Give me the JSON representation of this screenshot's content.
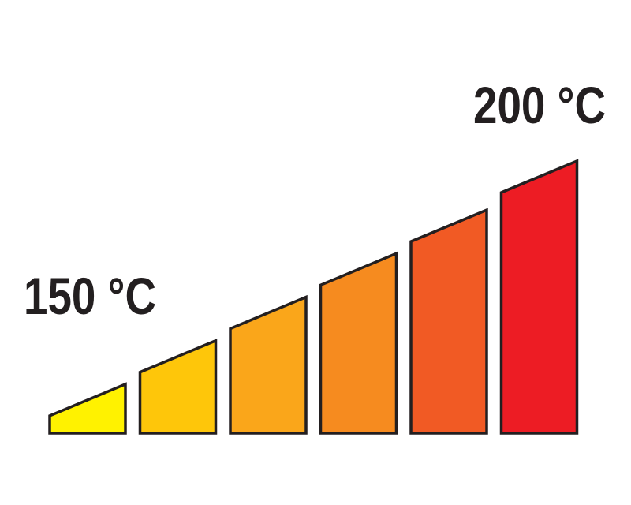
{
  "labels": {
    "low": "150 °C",
    "high": "200 °C"
  },
  "steps": [
    {
      "level": 0.18,
      "color": "#fff200"
    },
    {
      "level": 0.34,
      "color": "#fec60a"
    },
    {
      "level": 0.5,
      "color": "#faa61a"
    },
    {
      "level": 0.66,
      "color": "#f68b1f"
    },
    {
      "level": 0.82,
      "color": "#f15a24"
    },
    {
      "level": 1.0,
      "color": "#ed1c24"
    }
  ],
  "colors": {
    "outline": "#231f20",
    "text": "#231f20"
  }
}
